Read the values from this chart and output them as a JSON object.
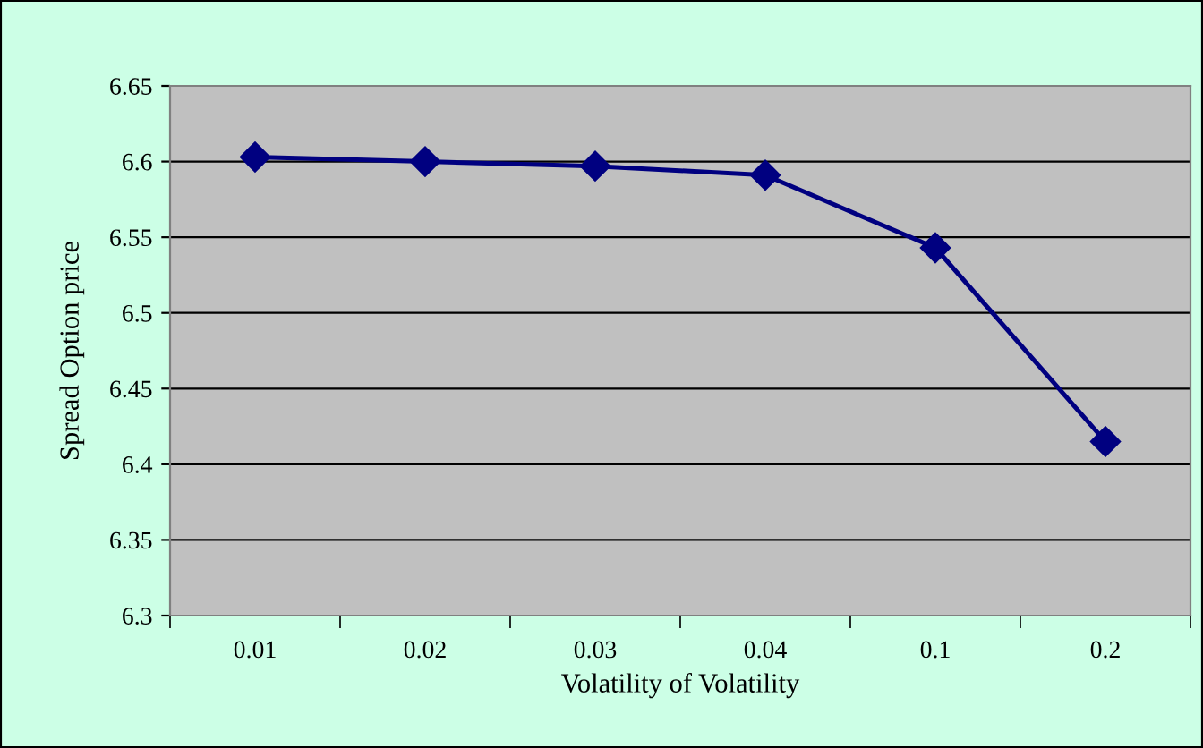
{
  "chart_data": {
    "type": "line",
    "xlabel": "Volatility of Volatility",
    "ylabel": "Spread Option price",
    "categories": [
      "0.01",
      "0.02",
      "0.03",
      "0.04",
      "0.1",
      "0.2"
    ],
    "series": [
      {
        "color": "#000080",
        "values": [
          6.603,
          6.6,
          6.597,
          6.591,
          6.543,
          6.415
        ]
      }
    ],
    "ylim": [
      6.3,
      6.65
    ],
    "yticks": [
      6.3,
      6.35,
      6.4,
      6.45,
      6.5,
      6.55,
      6.6,
      6.65
    ],
    "grid": "y",
    "legend": false,
    "marker": "diamond",
    "line_style": "solid"
  }
}
